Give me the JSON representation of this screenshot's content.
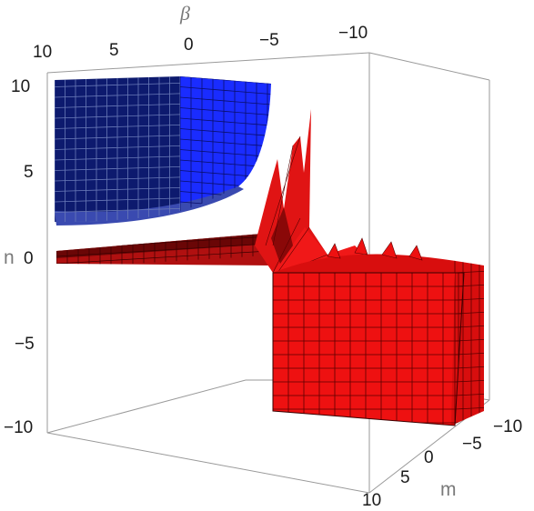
{
  "chart_data": {
    "type": "3d-surface",
    "axes": {
      "beta": {
        "label": "β",
        "ticks": [
          "10",
          "5",
          "0",
          "−5",
          "−10"
        ],
        "range": [
          -10,
          10
        ]
      },
      "n": {
        "label": "n",
        "ticks": [
          "10",
          "5",
          "0",
          "−5",
          "−10"
        ],
        "range": [
          -10,
          10
        ]
      },
      "m": {
        "label": "m",
        "ticks": [
          "−10",
          "−5",
          "0",
          "5",
          "10"
        ],
        "range": [
          -10,
          10
        ]
      }
    },
    "series": [
      {
        "color": "#1a2cff",
        "region": "upper-left"
      },
      {
        "color": "#ee1111",
        "region": "central-and-lower-right"
      }
    ],
    "bounding_box": true
  }
}
